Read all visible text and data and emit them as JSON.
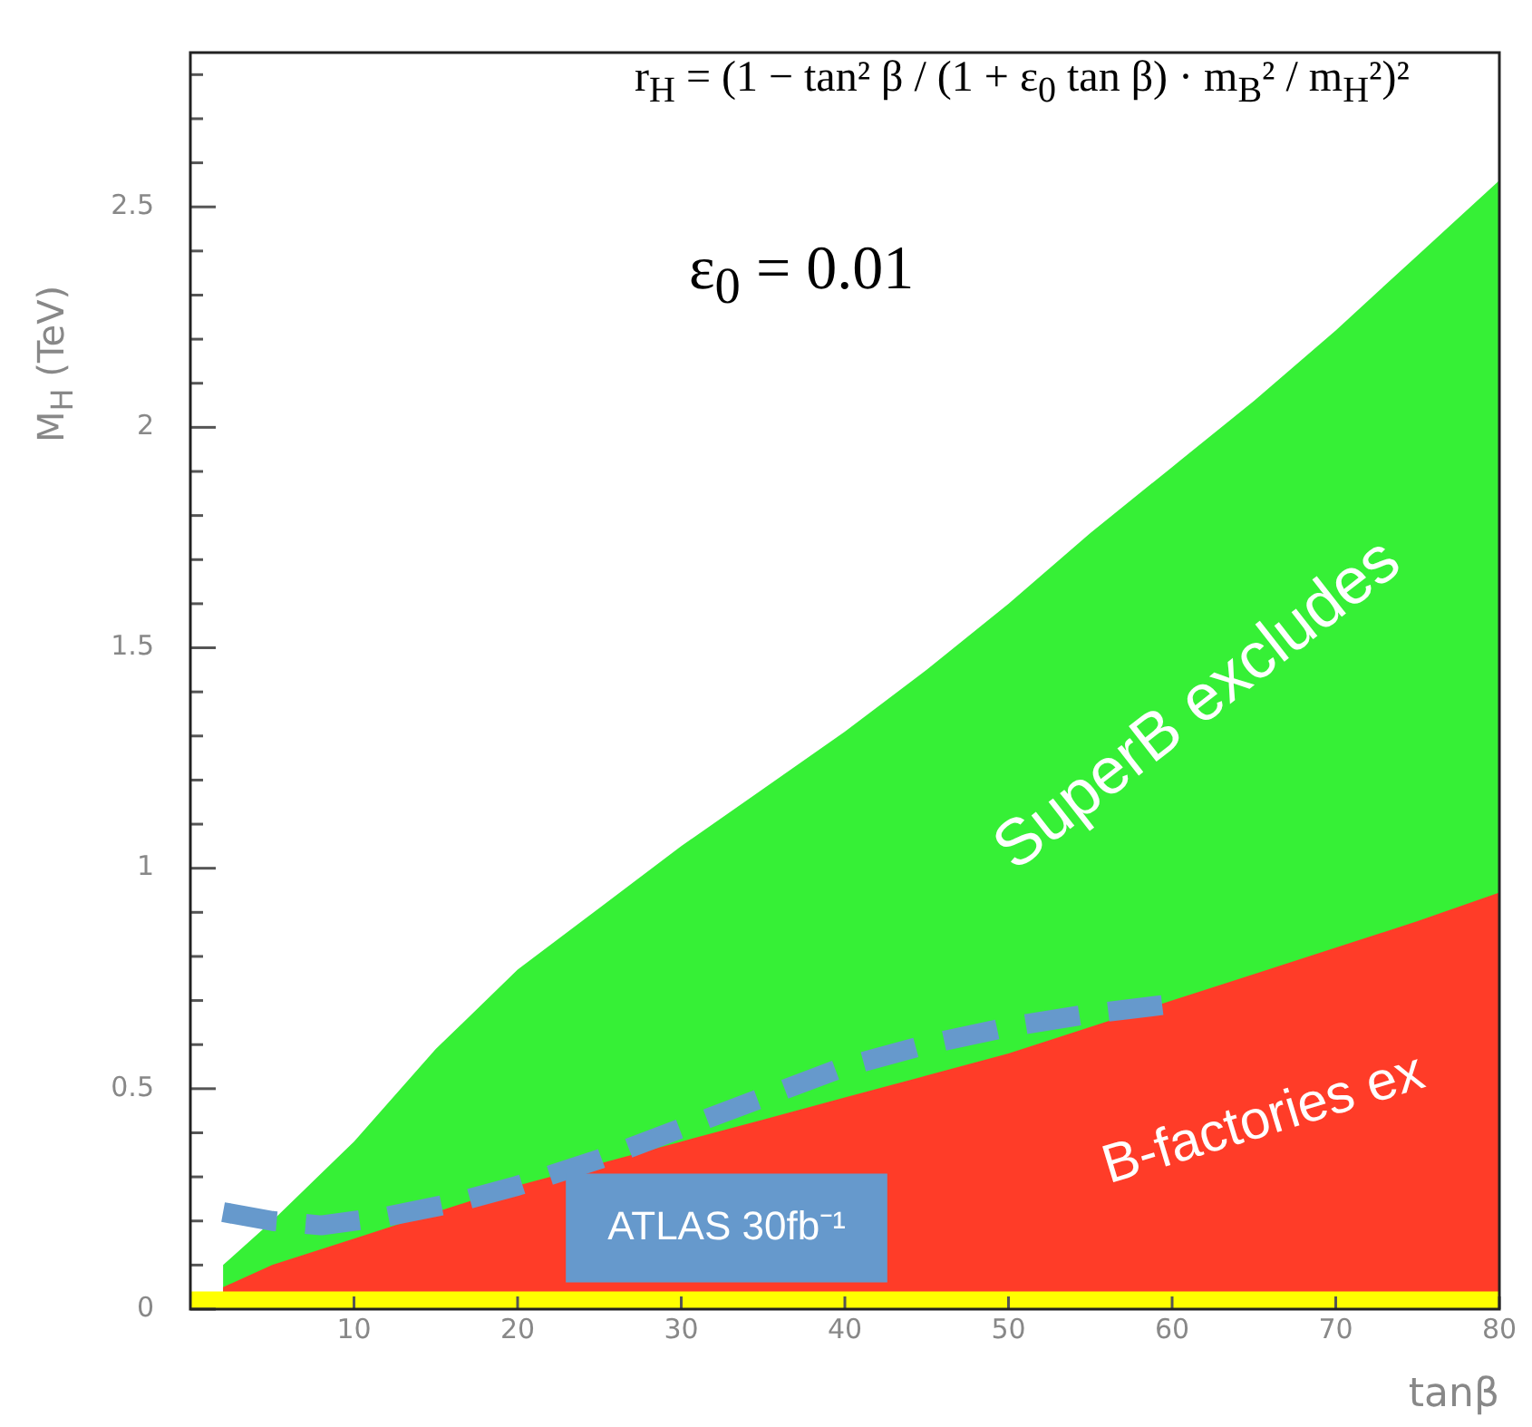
{
  "chart_data": {
    "type": "area",
    "xlabel": "tanβ",
    "ylabel": "M$_{H}$ (TeV)",
    "xlim": [
      0,
      80
    ],
    "xticks": [
      10,
      20,
      30,
      40,
      50,
      60,
      70,
      80
    ],
    "ylim": [
      0,
      2.85
    ],
    "yticks": [
      0,
      {
        "value": 0.1,
        "label": null
      },
      {
        "value": 0.2,
        "label": null
      },
      {
        "value": 0.3,
        "label": null
      },
      {
        "value": 0.4,
        "label": null
      },
      0.5,
      {
        "value": 0.6,
        "label": null
      },
      {
        "value": 0.7,
        "label": null
      },
      {
        "value": 0.8,
        "label": null
      },
      {
        "value": 0.9,
        "label": null
      },
      1,
      {
        "value": 1.1,
        "label": null
      },
      {
        "value": 1.2,
        "label": null
      },
      {
        "value": 1.3,
        "label": null
      },
      {
        "value": 1.4,
        "label": null
      },
      1.5,
      {
        "value": 1.6,
        "label": null
      },
      {
        "value": 1.7,
        "label": null
      },
      {
        "value": 1.8,
        "label": null
      },
      {
        "value": 1.9,
        "label": null
      },
      2,
      {
        "value": 2.1,
        "label": null
      },
      {
        "value": 2.2,
        "label": null
      },
      {
        "value": 2.3,
        "label": null
      },
      {
        "value": 2.4,
        "label": null
      },
      2.5,
      {
        "value": 2.6,
        "label": null
      },
      {
        "value": 2.7,
        "label": null
      },
      {
        "value": 2.8,
        "label": null
      }
    ],
    "x": [
      2,
      5,
      10,
      15,
      20,
      25,
      30,
      35,
      40,
      45,
      50,
      55,
      60,
      65,
      70,
      75,
      80
    ],
    "series": [
      {
        "color": "#36f036",
        "values": [
          0.1,
          0.2,
          0.38,
          0.59,
          0.77,
          0.91,
          1.05,
          1.18,
          1.31,
          1.45,
          1.6,
          1.76,
          1.91,
          2.06,
          2.22,
          2.39,
          2.56
        ]
      },
      {
        "color": "#ff3c28",
        "values": [
          0.05,
          0.1,
          0.16,
          0.22,
          0.28,
          0.33,
          0.38,
          0.43,
          0.48,
          0.53,
          0.58,
          0.64,
          0.7,
          0.76,
          0.82,
          0.88,
          0.945
        ]
      },
      {
        "type": "line",
        "name": "ATLAS 30fb⁻¹",
        "color": "#6699cc",
        "line_style": "dashed",
        "x": [
          2,
          5,
          8,
          12,
          16,
          20,
          25,
          30,
          35,
          40,
          45,
          50,
          55,
          59.5
        ],
        "values": [
          0.22,
          0.2,
          0.19,
          0.21,
          0.24,
          0.28,
          0.34,
          0.41,
          0.48,
          0.55,
          0.6,
          0.64,
          0.67,
          0.69
        ]
      }
    ],
    "bands": [
      {
        "axis": "y",
        "from": 0,
        "to": 0.04,
        "color": "#ffff00"
      }
    ],
    "annotations": [
      "r$_{H}$ = (1 − tan² β / (1 + ε$_{0}$ tan β) · m$_{B}$² / m$_{H}$²)²",
      "ε$_{0}$ = 0.01",
      "SuperB excludes",
      "B-factories ex"
    ],
    "legend": false
  }
}
